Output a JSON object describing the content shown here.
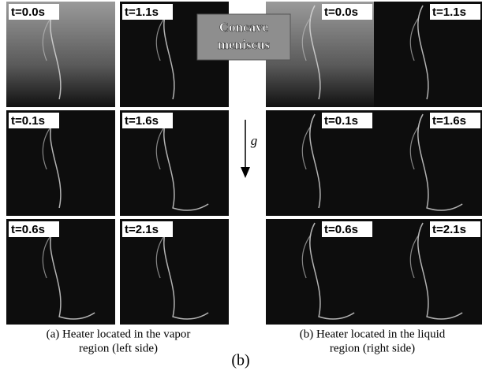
{
  "meniscus_label": [
    "Concave",
    "meniscus"
  ],
  "gravity_label": "g",
  "figure_label": "(b)",
  "panels": [
    {
      "frames": [
        "t=0.0s",
        "t=1.1s",
        "t=0.1s",
        "t=1.6s",
        "t=0.6s",
        "t=2.1s"
      ],
      "caption": [
        "(a) Heater located in the vapor",
        "region (left side)"
      ]
    },
    {
      "frames": [
        "t=0.0s",
        "t=1.1s",
        "t=0.1s",
        "t=1.6s",
        "t=0.6s",
        "t=2.1s"
      ],
      "caption": [
        "(b) Heater located in the liquid",
        "region (right side)"
      ]
    }
  ]
}
